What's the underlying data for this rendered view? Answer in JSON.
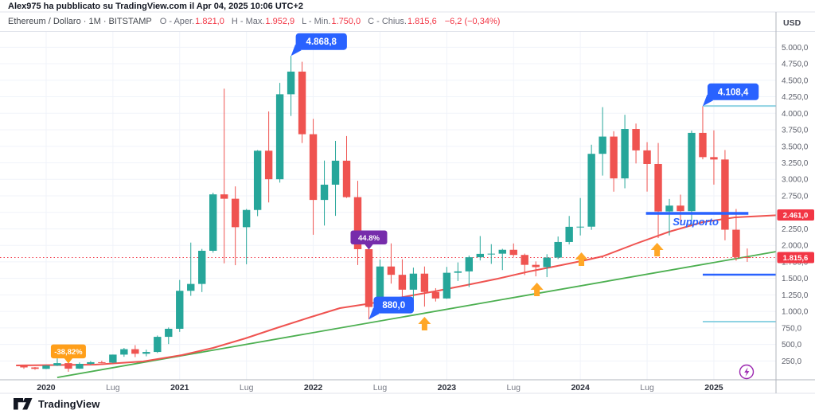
{
  "header": {
    "published": "Alex975 ha pubblicato su TradingView.com il Apr 04, 2025 10:06 UTC+2",
    "symbol": "Ethereum / Dollaro · 1M · BITSTAMP",
    "ohlc": [
      {
        "key": "O - Aper.",
        "value": "1.821,0"
      },
      {
        "key": "H - Max.",
        "value": "1.952,9"
      },
      {
        "key": "L - Min.",
        "value": "1.750,0"
      },
      {
        "key": "C - Chius.",
        "value": "1.815,6"
      }
    ],
    "change": "−6,2 (−0,34%)"
  },
  "footer": {
    "logo_text": "TradingView"
  },
  "colors": {
    "up": "#26a69a",
    "down": "#ef5350",
    "accent_blue": "#2962ff",
    "ma_red": "#ef5350",
    "trend_green": "#4caf50",
    "cyan_level": "#8fd3e3",
    "tag_red": "#f23645",
    "arrow_orange": "#ffa726",
    "flag_purple": "#762cab",
    "flag_orange": "#ff9f1a",
    "flash_purple": "#9c27b0"
  },
  "chart_data": {
    "type": "candlestick",
    "title": "Ethereum / Dollaro",
    "timeframe": "1M",
    "exchange": "BITSTAMP",
    "currency_label": "USD",
    "grid": true,
    "ylim": [
      0,
      5200
    ],
    "candles": [
      [
        "2019-11",
        183,
        192,
        131,
        152
      ],
      [
        "2019-12",
        152,
        158,
        116,
        130
      ],
      [
        "2020-01",
        130,
        188,
        126,
        180
      ],
      [
        "2020-02",
        180,
        289,
        173,
        217
      ],
      [
        "2020-03",
        217,
        254,
        86,
        133
      ],
      [
        "2020-04",
        133,
        228,
        130,
        206
      ],
      [
        "2020-05",
        206,
        248,
        190,
        231
      ],
      [
        "2020-06",
        231,
        254,
        216,
        225
      ],
      [
        "2020-07",
        225,
        347,
        215,
        346
      ],
      [
        "2020-08",
        346,
        447,
        313,
        428
      ],
      [
        "2020-09",
        428,
        489,
        308,
        359
      ],
      [
        "2020-10",
        359,
        420,
        320,
        386
      ],
      [
        "2020-11",
        386,
        635,
        370,
        615
      ],
      [
        "2020-12",
        615,
        757,
        505,
        737
      ],
      [
        "2021-01",
        737,
        1477,
        690,
        1312
      ],
      [
        "2021-02",
        1312,
        2042,
        1236,
        1416
      ],
      [
        "2021-03",
        1416,
        1946,
        1293,
        1918
      ],
      [
        "2021-04",
        1918,
        2798,
        1890,
        2772
      ],
      [
        "2021-05",
        2772,
        4372,
        1728,
        2706
      ],
      [
        "2021-06",
        2706,
        2893,
        1700,
        2275
      ],
      [
        "2021-07",
        2275,
        2551,
        1714,
        2536
      ],
      [
        "2021-08",
        2536,
        3443,
        2442,
        3433
      ],
      [
        "2021-09",
        3433,
        4028,
        2650,
        3001
      ],
      [
        "2021-10",
        3001,
        4460,
        2950,
        4288
      ],
      [
        "2021-11",
        4288,
        4868.8,
        3959,
        4631
      ],
      [
        "2021-12",
        4631,
        4780,
        3550,
        3683
      ],
      [
        "2022-01",
        3683,
        3916,
        2160,
        2688
      ],
      [
        "2022-02",
        2688,
        3284,
        2300,
        2919
      ],
      [
        "2022-03",
        2919,
        3582,
        2447,
        3282
      ],
      [
        "2022-04",
        3282,
        3655,
        2718,
        2730
      ],
      [
        "2022-05",
        2730,
        2977,
        1702,
        1942
      ],
      [
        "2022-06",
        1942,
        1955,
        880,
        1067
      ],
      [
        "2022-07",
        1067,
        1786,
        1006,
        1680
      ],
      [
        "2022-08",
        1680,
        2030,
        1421,
        1554
      ],
      [
        "2022-09",
        1554,
        1789,
        1220,
        1329
      ],
      [
        "2022-10",
        1329,
        1663,
        1190,
        1572
      ],
      [
        "2022-11",
        1572,
        1680,
        1073,
        1294
      ],
      [
        "2022-12",
        1294,
        1352,
        1150,
        1196
      ],
      [
        "2023-01",
        1196,
        1674,
        1190,
        1585
      ],
      [
        "2023-02",
        1585,
        1742,
        1461,
        1606
      ],
      [
        "2023-03",
        1606,
        1846,
        1368,
        1820
      ],
      [
        "2023-04",
        1820,
        2141,
        1772,
        1871
      ],
      [
        "2023-05",
        1871,
        2018,
        1720,
        1874
      ],
      [
        "2023-06",
        1874,
        1948,
        1626,
        1933
      ],
      [
        "2023-07",
        1933,
        2029,
        1825,
        1855
      ],
      [
        "2023-08",
        1855,
        1875,
        1550,
        1705
      ],
      [
        "2023-09",
        1705,
        1757,
        1531,
        1671
      ],
      [
        "2023-10",
        1671,
        1866,
        1519,
        1815
      ],
      [
        "2023-11",
        1815,
        2134,
        1793,
        2051
      ],
      [
        "2023-12",
        2051,
        2445,
        2015,
        2281
      ],
      [
        "2024-01",
        2281,
        2717,
        2150,
        2283
      ],
      [
        "2024-02",
        2283,
        3524,
        2235,
        3386
      ],
      [
        "2024-03",
        3386,
        4093,
        3056,
        3647
      ],
      [
        "2024-04",
        3647,
        3728,
        2813,
        3014
      ],
      [
        "2024-05",
        3014,
        3977,
        2864,
        3762
      ],
      [
        "2024-06",
        3762,
        3844,
        3240,
        3438
      ],
      [
        "2024-07",
        3438,
        3563,
        2814,
        3232
      ],
      [
        "2024-08",
        3232,
        3550,
        2111,
        2513
      ],
      [
        "2024-09",
        2513,
        2703,
        2150,
        2602
      ],
      [
        "2024-10",
        2602,
        2768,
        2306,
        2518
      ],
      [
        "2024-11",
        2518,
        3738,
        2313,
        3703
      ],
      [
        "2024-12",
        3703,
        4108.4,
        3303,
        3336
      ],
      [
        "2025-01",
        3336,
        3742,
        2920,
        3300
      ],
      [
        "2025-02",
        3300,
        3444,
        2077,
        2237
      ],
      [
        "2025-03",
        2237,
        2551,
        1767,
        1822
      ],
      [
        "2025-04",
        1821,
        1952.9,
        1750,
        1815.6
      ]
    ],
    "y_ticks": [
      {
        "v": 5000,
        "label": "5.000,0"
      },
      {
        "v": 4750,
        "label": "4.750,0"
      },
      {
        "v": 4500,
        "label": "4.500,0"
      },
      {
        "v": 4250,
        "label": "4.250,0"
      },
      {
        "v": 4000,
        "label": "4.000,0"
      },
      {
        "v": 3750,
        "label": "3.750,0"
      },
      {
        "v": 3500,
        "label": "3.500,0"
      },
      {
        "v": 3250,
        "label": "3.250,0"
      },
      {
        "v": 3000,
        "label": "3.000,0"
      },
      {
        "v": 2750,
        "label": "2.750,0"
      },
      {
        "v": 2500,
        "label": "2.500,0"
      },
      {
        "v": 2250,
        "label": "2.250,0"
      },
      {
        "v": 2000,
        "label": "2.000,0"
      },
      {
        "v": 1750,
        "label": "1.750,0"
      },
      {
        "v": 1500,
        "label": "1.500,0"
      },
      {
        "v": 1250,
        "label": "1.250,0"
      },
      {
        "v": 1000,
        "label": "1.000,0"
      },
      {
        "v": 750,
        "label": "750,0"
      },
      {
        "v": 500,
        "label": "500,0"
      },
      {
        "v": 250,
        "label": "250,0"
      }
    ],
    "x_ticks": [
      {
        "label": "2020",
        "m": 2,
        "major": true
      },
      {
        "label": "Lug",
        "m": 8
      },
      {
        "label": "2021",
        "m": 14,
        "major": true
      },
      {
        "label": "Lug",
        "m": 20
      },
      {
        "label": "2022",
        "m": 26,
        "major": true
      },
      {
        "label": "Lug",
        "m": 32
      },
      {
        "label": "2023",
        "m": 38,
        "major": true
      },
      {
        "label": "Lug",
        "m": 44
      },
      {
        "label": "2024",
        "m": 50,
        "major": true
      },
      {
        "label": "Lug",
        "m": 56
      },
      {
        "label": "2025",
        "m": 62,
        "major": true
      }
    ],
    "price_line": {
      "value": 1815.6
    },
    "price_tags": [
      {
        "text": "2.461,0",
        "value": 2461
      },
      {
        "text": "1.815,6",
        "value": 1815.6
      }
    ],
    "trend_lines": [
      {
        "name": "green-trendline",
        "color": "#4caf50",
        "width": 1.8,
        "points": [
          [
            3.0,
            0
          ],
          [
            67.6,
            1906
          ]
        ]
      },
      {
        "name": "red-moving-average",
        "color": "#ef5350",
        "width": 2,
        "points": [
          [
            -0.7,
            182
          ],
          [
            6.4,
            194
          ],
          [
            10.7,
            242
          ],
          [
            14.2,
            339
          ],
          [
            17.0,
            447
          ],
          [
            19.9,
            592
          ],
          [
            22.7,
            749
          ],
          [
            25.6,
            905
          ],
          [
            28.4,
            1050
          ],
          [
            31.2,
            1122
          ],
          [
            34.1,
            1219
          ],
          [
            36.9,
            1303
          ],
          [
            39.8,
            1400
          ],
          [
            42.6,
            1496
          ],
          [
            45.4,
            1604
          ],
          [
            48.3,
            1701
          ],
          [
            50.4,
            1773
          ],
          [
            52.0,
            1833
          ],
          [
            55.0,
            2026
          ],
          [
            58.0,
            2207
          ],
          [
            61.0,
            2352
          ],
          [
            63.9,
            2424
          ],
          [
            67.6,
            2455
          ]
        ]
      }
    ],
    "levels": [
      {
        "name": "support-line-main",
        "color": "#2962ff",
        "width": 3.5,
        "value": 2484,
        "m1": 55.9,
        "m2": 65.1
      },
      {
        "name": "support-line-lower",
        "color": "#2962ff",
        "width": 2.5,
        "value": 1557,
        "m1": 61.0,
        "m2": 67.55
      },
      {
        "name": "level-high",
        "color": "#8fd3e3",
        "width": 2,
        "value": 4111,
        "m1": 61.0,
        "m2": 67.55
      },
      {
        "name": "level-low",
        "color": "#8fd3e3",
        "width": 2,
        "value": 845,
        "m1": 61.0,
        "m2": 67.55
      }
    ],
    "annotations": {
      "callouts": [
        {
          "text": "4.868,8",
          "month": "2021-11",
          "value": 4868.8
        },
        {
          "text": "4.108,4",
          "month": "2024-12",
          "value": 4108.4
        },
        {
          "text": "880,0",
          "month": "2022-06",
          "value": 880
        }
      ],
      "flags": [
        {
          "text": "44.8%",
          "month": "2022-06",
          "value": 1942,
          "color": "#762cab",
          "w": 46
        },
        {
          "text": "-38,82%",
          "month": "2020-03",
          "value": 217,
          "color": "#ff9f1a",
          "w": 44
        }
      ],
      "support_text": {
        "text": "Supporto",
        "m": 58.3,
        "value": 2304
      },
      "arrows": [
        {
          "m": 36.0,
          "value": 917
        },
        {
          "m": 46.1,
          "value": 1436
        },
        {
          "m": 50.1,
          "value": 1894
        },
        {
          "m": 56.9,
          "value": 2038
        }
      ]
    }
  }
}
